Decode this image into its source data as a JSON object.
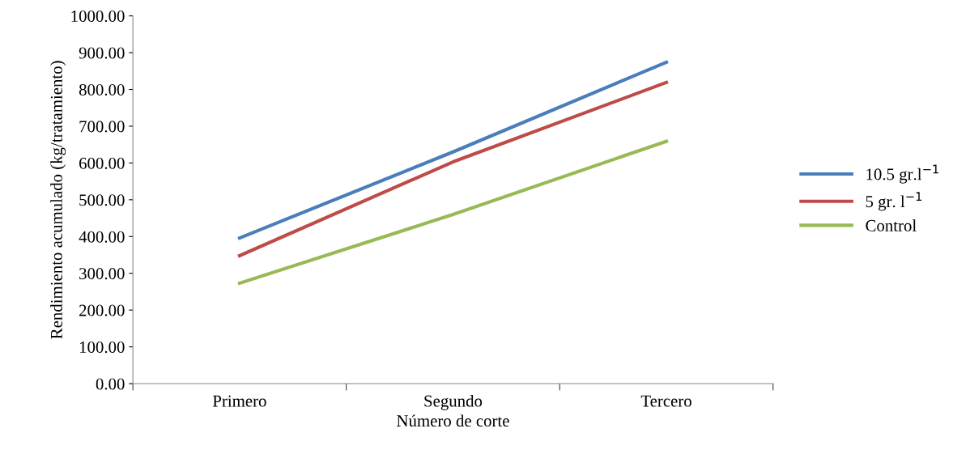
{
  "chart_data": {
    "type": "line",
    "xlabel": "Número de corte",
    "ylabel": "Rendimiento acumulado (kg/tratamiento)",
    "categories": [
      "Primero",
      "Segundo",
      "Tercero"
    ],
    "series": [
      {
        "name": "10.5 gr.l$^{−1}$",
        "color": "#4a7ebb",
        "values": [
          396,
          630,
          874
        ]
      },
      {
        "name": "5 gr. l$^{−1}$",
        "color": "#be4b48",
        "values": [
          348,
          603,
          819
        ]
      },
      {
        "name": "Control",
        "color": "#98b954",
        "values": [
          273,
          460,
          659
        ]
      }
    ],
    "ylim": [
      0,
      1000
    ],
    "yticks": [
      {
        "value": 0,
        "label": "0.00"
      },
      {
        "value": 100,
        "label": "100.00"
      },
      {
        "value": 200,
        "label": "200.00"
      },
      {
        "value": 300,
        "label": "300.00"
      },
      {
        "value": 400,
        "label": "400.00"
      },
      {
        "value": 500,
        "label": "500.00"
      },
      {
        "value": 600,
        "label": "600.00"
      },
      {
        "value": 700,
        "label": "700.00"
      },
      {
        "value": 800,
        "label": "800.00"
      },
      {
        "value": 900,
        "label": "900.00"
      },
      {
        "value": 1000,
        "label": "1000.00"
      }
    ],
    "grid": false,
    "legend": "right",
    "marker": "none",
    "line_style": "solid"
  }
}
